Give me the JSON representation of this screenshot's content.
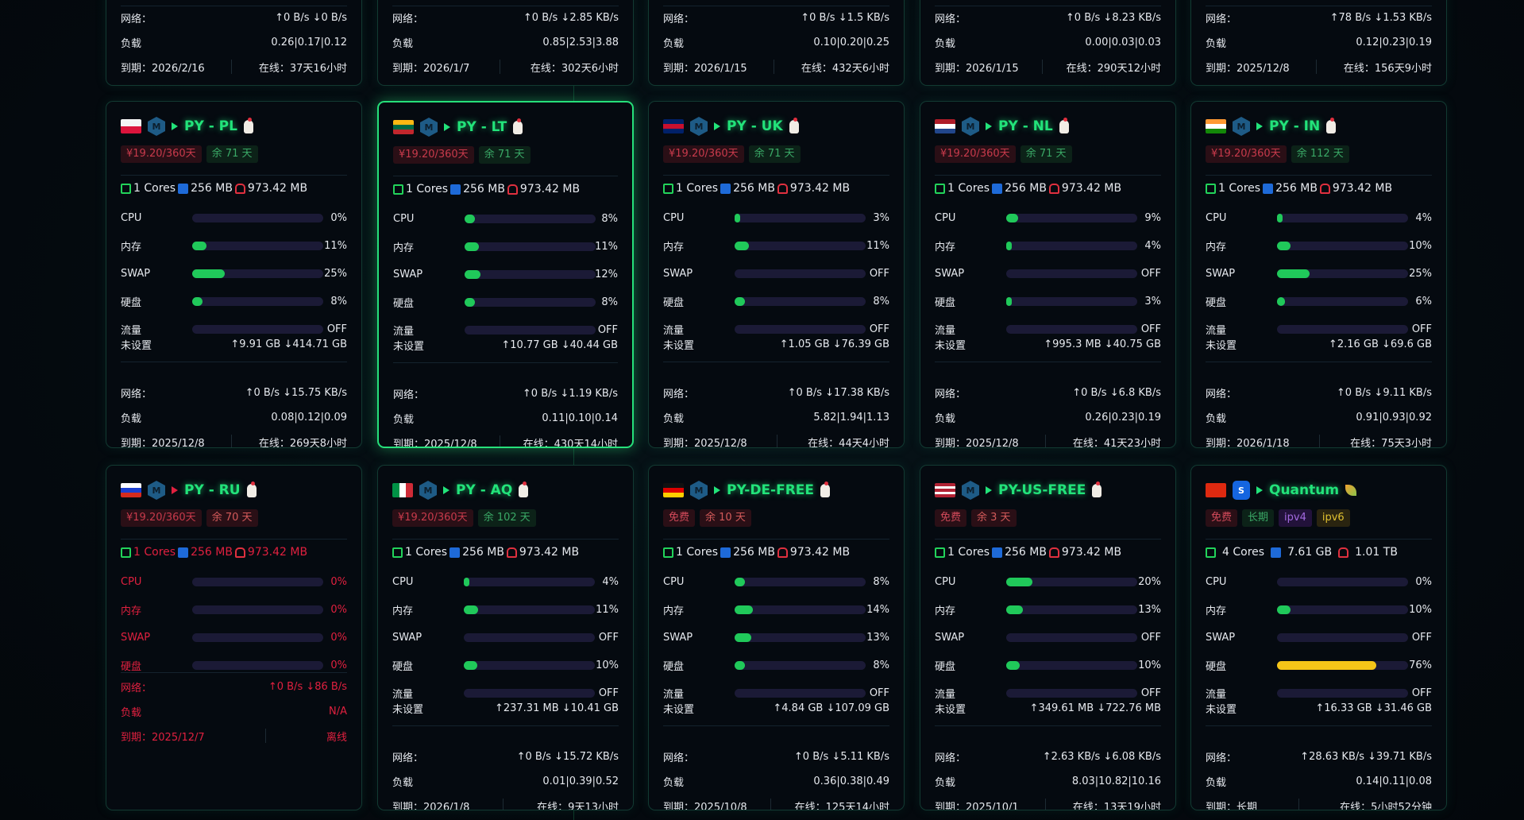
{
  "labels": {
    "net": "网络：",
    "load": "负载",
    "expire": "到期：",
    "online": "在线：",
    "cpu": "CPU",
    "mem": "内存",
    "swap": "SWAP",
    "disk": "硬盘",
    "traffic": "流量",
    "traffic_unset": "未设置"
  },
  "colors": {
    "accent": "#22e37a",
    "bar": "#20c95a",
    "bar_warn": "#f5c518",
    "offline": "#e0203f",
    "track": "#1b1a36"
  },
  "top_cards": [
    {
      "net_up": "↑0 B/s",
      "net_down": "↓0 B/s",
      "load": "0.26|0.17|0.12",
      "expire": "2026/2/16",
      "online": "37天16小时"
    },
    {
      "net_up": "↑0 B/s",
      "net_down": "↓2.85 KB/s",
      "load": "0.85|2.53|3.88",
      "expire": "2026/1/7",
      "online": "302天6小时"
    },
    {
      "net_up": "↑0 B/s",
      "net_down": "↓1.5 KB/s",
      "load": "0.10|0.20|0.25",
      "expire": "2026/1/15",
      "online": "432天6小时"
    },
    {
      "net_up": "↑0 B/s",
      "net_down": "↓8.23 KB/s",
      "load": "0.00|0.03|0.03",
      "expire": "2026/1/15",
      "online": "290天12小时"
    },
    {
      "net_up": "↑78 B/s",
      "net_down": "↓1.53 KB/s",
      "load": "0.12|0.23|0.19",
      "expire": "2025/12/8",
      "online": "156天9小时"
    }
  ],
  "servers": [
    {
      "name": "PY - PL",
      "flag": "pl",
      "icon": "hexagon-logo",
      "tags": [
        {
          "text": "¥19.20/360天",
          "kind": "price"
        },
        {
          "text": "余 71 天",
          "kind": "remain"
        }
      ],
      "cores": "1 Cores",
      "ram": "256 MB",
      "disk": "973.42 MB",
      "cpu": "0%",
      "cpu_pct": 0,
      "mem": "11%",
      "mem_pct": 11,
      "swap": "25%",
      "swap_pct": 25,
      "hdd": "8%",
      "hdd_pct": 8,
      "traffic": "OFF",
      "traffic_up": "↑9.91 GB",
      "traffic_down": "↓414.71 GB",
      "net_up": "↑0 B/s",
      "net_down": "↓15.75 KB/s",
      "load": "0.08|0.12|0.09",
      "expire": "2025/12/8",
      "online": "269天8小时"
    },
    {
      "name": "PY - LT",
      "flag": "lt",
      "icon": "hexagon-logo",
      "highlight": true,
      "tags": [
        {
          "text": "¥19.20/360天",
          "kind": "price"
        },
        {
          "text": "余 71 天",
          "kind": "remain"
        }
      ],
      "cores": "1 Cores",
      "ram": "256 MB",
      "disk": "973.42 MB",
      "cpu": "8%",
      "cpu_pct": 8,
      "mem": "11%",
      "mem_pct": 11,
      "swap": "12%",
      "swap_pct": 12,
      "hdd": "8%",
      "hdd_pct": 8,
      "traffic": "OFF",
      "traffic_up": "↑10.77 GB",
      "traffic_down": "↓40.44 GB",
      "net_up": "↑0 B/s",
      "net_down": "↓1.19 KB/s",
      "load": "0.11|0.10|0.14",
      "expire": "2025/12/8",
      "online": "430天14小时"
    },
    {
      "name": "PY - UK",
      "flag": "uk",
      "icon": "hexagon-logo",
      "tags": [
        {
          "text": "¥19.20/360天",
          "kind": "price"
        },
        {
          "text": "余 71 天",
          "kind": "remain"
        }
      ],
      "cores": "1 Cores",
      "ram": "256 MB",
      "disk": "973.42 MB",
      "cpu": "3%",
      "cpu_pct": 3,
      "mem": "11%",
      "mem_pct": 11,
      "swap": "OFF",
      "swap_pct": 0,
      "hdd": "8%",
      "hdd_pct": 8,
      "traffic": "OFF",
      "traffic_up": "↑1.05 GB",
      "traffic_down": "↓76.39 GB",
      "net_up": "↑0 B/s",
      "net_down": "↓17.38 KB/s",
      "load": "5.82|1.94|1.13",
      "expire": "2025/12/8",
      "online": "44天4小时"
    },
    {
      "name": "PY - NL",
      "flag": "nl",
      "icon": "hexagon-logo",
      "tags": [
        {
          "text": "¥19.20/360天",
          "kind": "price"
        },
        {
          "text": "余 71 天",
          "kind": "remain"
        }
      ],
      "cores": "1 Cores",
      "ram": "256 MB",
      "disk": "973.42 MB",
      "cpu": "9%",
      "cpu_pct": 9,
      "mem": "4%",
      "mem_pct": 4,
      "swap": "OFF",
      "swap_pct": 0,
      "hdd": "3%",
      "hdd_pct": 3,
      "traffic": "OFF",
      "traffic_up": "↑995.3 MB",
      "traffic_down": "↓40.75 GB",
      "net_up": "↑0 B/s",
      "net_down": "↓6.8 KB/s",
      "load": "0.26|0.23|0.19",
      "expire": "2025/12/8",
      "online": "41天23小时"
    },
    {
      "name": "PY - IN",
      "flag": "in",
      "icon": "hexagon-logo",
      "tags": [
        {
          "text": "¥19.20/360天",
          "kind": "price"
        },
        {
          "text": "余 112 天",
          "kind": "remain"
        }
      ],
      "cores": "1 Cores",
      "ram": "256 MB",
      "disk": "973.42 MB",
      "cpu": "4%",
      "cpu_pct": 4,
      "mem": "10%",
      "mem_pct": 10,
      "swap": "25%",
      "swap_pct": 25,
      "hdd": "6%",
      "hdd_pct": 6,
      "traffic": "OFF",
      "traffic_up": "↑2.16 GB",
      "traffic_down": "↓69.6 GB",
      "net_up": "↑0 B/s",
      "net_down": "↓9.11 KB/s",
      "load": "0.91|0.93|0.92",
      "expire": "2026/1/18",
      "online": "75天3小时"
    },
    {
      "name": "PY - RU",
      "flag": "ru",
      "icon": "hexagon-logo",
      "offline": true,
      "tags": [
        {
          "text": "¥19.20/360天",
          "kind": "price"
        },
        {
          "text": "余 70 天",
          "kind": "remainr"
        }
      ],
      "cores": "1 Cores",
      "ram": "256 MB",
      "disk": "973.42 MB",
      "cpu": "0%",
      "cpu_pct": 0,
      "mem": "0%",
      "mem_pct": 0,
      "swap": "0%",
      "swap_pct": 0,
      "hdd": "0%",
      "hdd_pct": 0,
      "net_up": "↑0 B/s",
      "net_down": "↓86 B/s",
      "load": "N/A",
      "expire": "2025/12/7",
      "online_status": "离线"
    },
    {
      "name": "PY - AQ",
      "flag": "it",
      "icon": "hexagon-logo",
      "tags": [
        {
          "text": "¥19.20/360天",
          "kind": "price"
        },
        {
          "text": "余 102 天",
          "kind": "remain"
        }
      ],
      "cores": "1 Cores",
      "ram": "256 MB",
      "disk": "973.42 MB",
      "cpu": "4%",
      "cpu_pct": 4,
      "mem": "11%",
      "mem_pct": 11,
      "swap": "OFF",
      "swap_pct": 0,
      "hdd": "10%",
      "hdd_pct": 10,
      "traffic": "OFF",
      "traffic_up": "↑237.31 MB",
      "traffic_down": "↓10.41 GB",
      "net_up": "↑0 B/s",
      "net_down": "↓15.72 KB/s",
      "load": "0.01|0.39|0.52",
      "expire": "2026/1/8",
      "online": "9天13小时"
    },
    {
      "name": "PY-DE-FREE",
      "flag": "de",
      "icon": "hexagon-logo",
      "tags": [
        {
          "text": "免费",
          "kind": "free"
        },
        {
          "text": "余 10 天",
          "kind": "remainr"
        }
      ],
      "cores": "1 Cores",
      "ram": "256 MB",
      "disk": "973.42 MB",
      "cpu": "8%",
      "cpu_pct": 8,
      "mem": "14%",
      "mem_pct": 14,
      "swap": "13%",
      "swap_pct": 13,
      "hdd": "8%",
      "hdd_pct": 8,
      "traffic": "OFF",
      "traffic_up": "↑4.84 GB",
      "traffic_down": "↓107.09 GB",
      "net_up": "↑0 B/s",
      "net_down": "↓5.11 KB/s",
      "load": "0.36|0.38|0.49",
      "expire": "2025/10/8",
      "online": "125天14小时"
    },
    {
      "name": "PY-US-FREE",
      "flag": "us",
      "icon": "hexagon-logo",
      "tags": [
        {
          "text": "免费",
          "kind": "free"
        },
        {
          "text": "余 3 天",
          "kind": "remainr"
        }
      ],
      "cores": "1 Cores",
      "ram": "256 MB",
      "disk": "973.42 MB",
      "cpu": "20%",
      "cpu_pct": 20,
      "mem": "13%",
      "mem_pct": 13,
      "swap": "OFF",
      "swap_pct": 0,
      "hdd": "10%",
      "hdd_pct": 10,
      "traffic": "OFF",
      "traffic_up": "↑349.61 MB",
      "traffic_down": "↓722.76 MB",
      "net_up": "↑2.63 KB/s",
      "net_down": "↓6.08 KB/s",
      "load": "8.03|10.82|10.16",
      "expire": "2025/10/1",
      "online": "13天19小时"
    },
    {
      "name": "Quantum",
      "flag": "cn",
      "icon": "quantum-logo",
      "tags": [
        {
          "text": "免费",
          "kind": "free"
        },
        {
          "text": "长期",
          "kind": "long"
        },
        {
          "text": "ipv4",
          "kind": "v4"
        },
        {
          "text": "ipv6",
          "kind": "v6"
        }
      ],
      "cores": "4 Cores",
      "ram": "7.61 GB",
      "disk": "1.01 TB",
      "cpu": "0%",
      "cpu_pct": 0,
      "mem": "10%",
      "mem_pct": 10,
      "swap": "OFF",
      "swap_pct": 0,
      "hdd": "76%",
      "hdd_pct": 76,
      "traffic": "OFF",
      "traffic_up": "↑16.33 GB",
      "traffic_down": "↓31.46 GB",
      "net_up": "↑28.63 KB/s",
      "net_down": "↓39.71 KB/s",
      "load": "0.14|0.11|0.08",
      "expire": "长期",
      "online": "5小时52分钟"
    }
  ]
}
